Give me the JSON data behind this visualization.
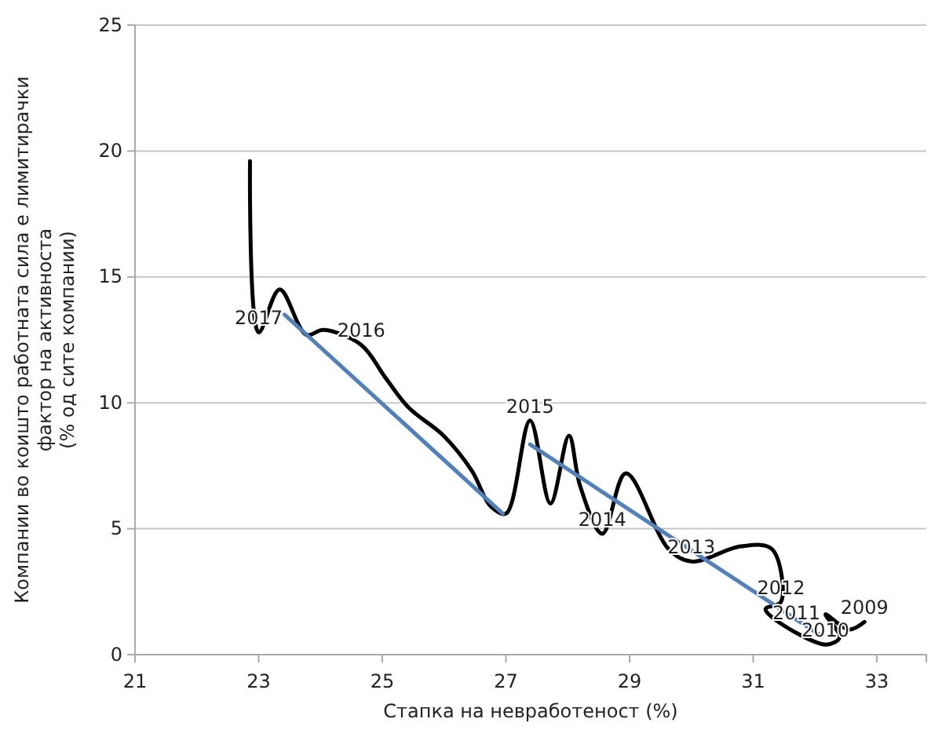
{
  "chart_data": {
    "type": "line",
    "xlabel": "Стапка на невработеност (%)",
    "ylabel": "Компании во коишто работната сила е лимитирачки\nфактор на активноста\n(% од сите компании)",
    "xlim": [
      21,
      33.8
    ],
    "xticks": [
      21,
      23,
      25,
      27,
      29,
      31,
      33
    ],
    "ylim": [
      0,
      25
    ],
    "yticks": [
      0,
      5,
      10,
      15,
      20,
      25
    ],
    "grid": "y",
    "marker": "none",
    "line_style": "solid",
    "series": [
      {
        "color": "#000000",
        "x": [
          22.86,
          23.0,
          23.34,
          23.77,
          24.05,
          24.66,
          25.05,
          25.43,
          25.99,
          26.45,
          26.75,
          27.0,
          27.39,
          27.72,
          28.02,
          28.2,
          28.56,
          28.94,
          29.63,
          30.0,
          30.8,
          31.3,
          31.45,
          31.2,
          32.17,
          32.4,
          32.17,
          32.55,
          32.8
        ],
        "values": [
          19.6,
          12.8,
          14.5,
          12.7,
          12.9,
          12.3,
          11.0,
          9.8,
          8.7,
          7.3,
          5.9,
          5.6,
          9.3,
          6.0,
          8.7,
          6.7,
          4.8,
          7.2,
          4.2,
          3.7,
          4.3,
          4.2,
          2.1,
          1.8,
          0.4,
          0.7,
          1.6,
          1.0,
          1.3
        ]
      },
      {
        "color": "#4f81bd",
        "x": [
          23.42,
          26.95
        ],
        "values": [
          13.5,
          5.6
        ]
      },
      {
        "color": "#4f81bd",
        "x": [
          27.39,
          32.1
        ],
        "values": [
          8.35,
          0.75
        ]
      }
    ],
    "annotations": [
      {
        "text": "2017",
        "x": 23.0,
        "y": 12.8
      },
      {
        "text": "2016",
        "x": 24.66,
        "y": 12.3
      },
      {
        "text": "2015",
        "x": 27.39,
        "y": 9.3
      },
      {
        "text": "2014",
        "x": 28.56,
        "y": 4.8
      },
      {
        "text": "2013",
        "x": 30.0,
        "y": 3.7
      },
      {
        "text": "2012",
        "x": 31.45,
        "y": 2.1
      },
      {
        "text": "2011",
        "x": 31.7,
        "y": 1.1
      },
      {
        "text": "2010",
        "x": 32.17,
        "y": 0.4
      },
      {
        "text": "2009",
        "x": 32.8,
        "y": 1.3
      }
    ]
  }
}
